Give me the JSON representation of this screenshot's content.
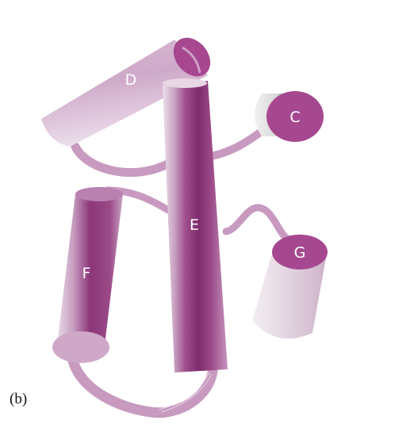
{
  "figure": {
    "panel_label": "(b)",
    "helices": [
      {
        "id": "D",
        "label": "D",
        "color": "#d9b8d4"
      },
      {
        "id": "C",
        "label": "C",
        "color": "#a6488f"
      },
      {
        "id": "E",
        "label": "E",
        "color": "#8e2e79"
      },
      {
        "id": "F",
        "label": "F",
        "color": "#8e2e79"
      },
      {
        "id": "G",
        "label": "G",
        "color": "#a6488f"
      }
    ],
    "loop_color": "#c89ac0"
  }
}
